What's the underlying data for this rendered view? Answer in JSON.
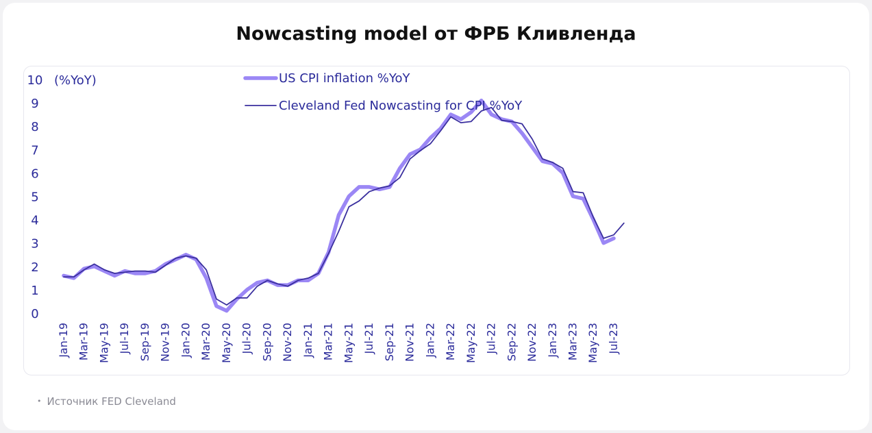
{
  "page": {
    "title": "Nowcasting model от ФРБ Кливленда",
    "source": "Источник FED Cleveland"
  },
  "chart_data": {
    "type": "line",
    "title": "",
    "ylabel": "(%YoY)",
    "xlabel": "",
    "ylim": [
      0,
      10
    ],
    "yticks": [
      0,
      1,
      2,
      3,
      4,
      5,
      6,
      7,
      8,
      9,
      10
    ],
    "grid": false,
    "legend_position": "top-center",
    "x": [
      "Jan-19",
      "Feb-19",
      "Mar-19",
      "Apr-19",
      "May-19",
      "Jun-19",
      "Jul-19",
      "Aug-19",
      "Sep-19",
      "Oct-19",
      "Nov-19",
      "Dec-19",
      "Jan-20",
      "Feb-20",
      "Mar-20",
      "Apr-20",
      "May-20",
      "Jun-20",
      "Jul-20",
      "Aug-20",
      "Sep-20",
      "Oct-20",
      "Nov-20",
      "Dec-20",
      "Jan-21",
      "Feb-21",
      "Mar-21",
      "Apr-21",
      "May-21",
      "Jun-21",
      "Jul-21",
      "Aug-21",
      "Sep-21",
      "Oct-21",
      "Nov-21",
      "Dec-21",
      "Jan-22",
      "Feb-22",
      "Mar-22",
      "Apr-22",
      "May-22",
      "Jun-22",
      "Jul-22",
      "Aug-22",
      "Sep-22",
      "Oct-22",
      "Nov-22",
      "Dec-22",
      "Jan-23",
      "Feb-23",
      "Mar-23",
      "Apr-23",
      "May-23",
      "Jun-23",
      "Jul-23",
      "Aug-23"
    ],
    "x_tick_labels": [
      "Jan-19",
      "Mar-19",
      "May-19",
      "Jul-19",
      "Sep-19",
      "Nov-19",
      "Jan-20",
      "Mar-20",
      "May-20",
      "Jul-20",
      "Sep-20",
      "Nov-20",
      "Jan-21",
      "Mar-21",
      "May-21",
      "Jul-21",
      "Sep-21",
      "Nov-21",
      "Jan-22",
      "Mar-22",
      "May-22",
      "Jul-22",
      "Sep-22",
      "Nov-22",
      "Jan-23",
      "Mar-23",
      "May-23",
      "Jul-23"
    ],
    "series": [
      {
        "name": "US CPI inflation %YoY",
        "color": "#9b87f5",
        "values": [
          1.6,
          1.5,
          1.9,
          2.0,
          1.8,
          1.6,
          1.8,
          1.7,
          1.7,
          1.8,
          2.1,
          2.3,
          2.5,
          2.3,
          1.5,
          0.3,
          0.1,
          0.6,
          1.0,
          1.3,
          1.4,
          1.2,
          1.2,
          1.4,
          1.4,
          1.7,
          2.6,
          4.2,
          5.0,
          5.4,
          5.4,
          5.3,
          5.4,
          6.2,
          6.8,
          7.0,
          7.5,
          7.9,
          8.5,
          8.3,
          8.6,
          9.1,
          8.5,
          8.3,
          8.2,
          7.7,
          7.1,
          6.5,
          6.4,
          6.0,
          5.0,
          4.9,
          4.0,
          3.0,
          3.2,
          null
        ]
      },
      {
        "name": "Cleveland Fed Nowcasting for CPI %YoY",
        "color": "#3a2f9e",
        "values": [
          1.55,
          1.55,
          1.85,
          2.1,
          1.85,
          1.7,
          1.75,
          1.8,
          1.8,
          1.75,
          2.05,
          2.35,
          2.45,
          2.35,
          1.85,
          0.6,
          0.35,
          0.65,
          0.65,
          1.15,
          1.4,
          1.25,
          1.15,
          1.4,
          1.5,
          1.7,
          2.55,
          3.5,
          4.55,
          4.8,
          5.2,
          5.35,
          5.45,
          5.8,
          6.6,
          6.95,
          7.25,
          7.8,
          8.4,
          8.15,
          8.2,
          8.65,
          8.8,
          8.25,
          8.2,
          8.1,
          7.45,
          6.6,
          6.45,
          6.2,
          5.2,
          5.15,
          4.1,
          3.2,
          3.35,
          3.85
        ]
      }
    ]
  }
}
